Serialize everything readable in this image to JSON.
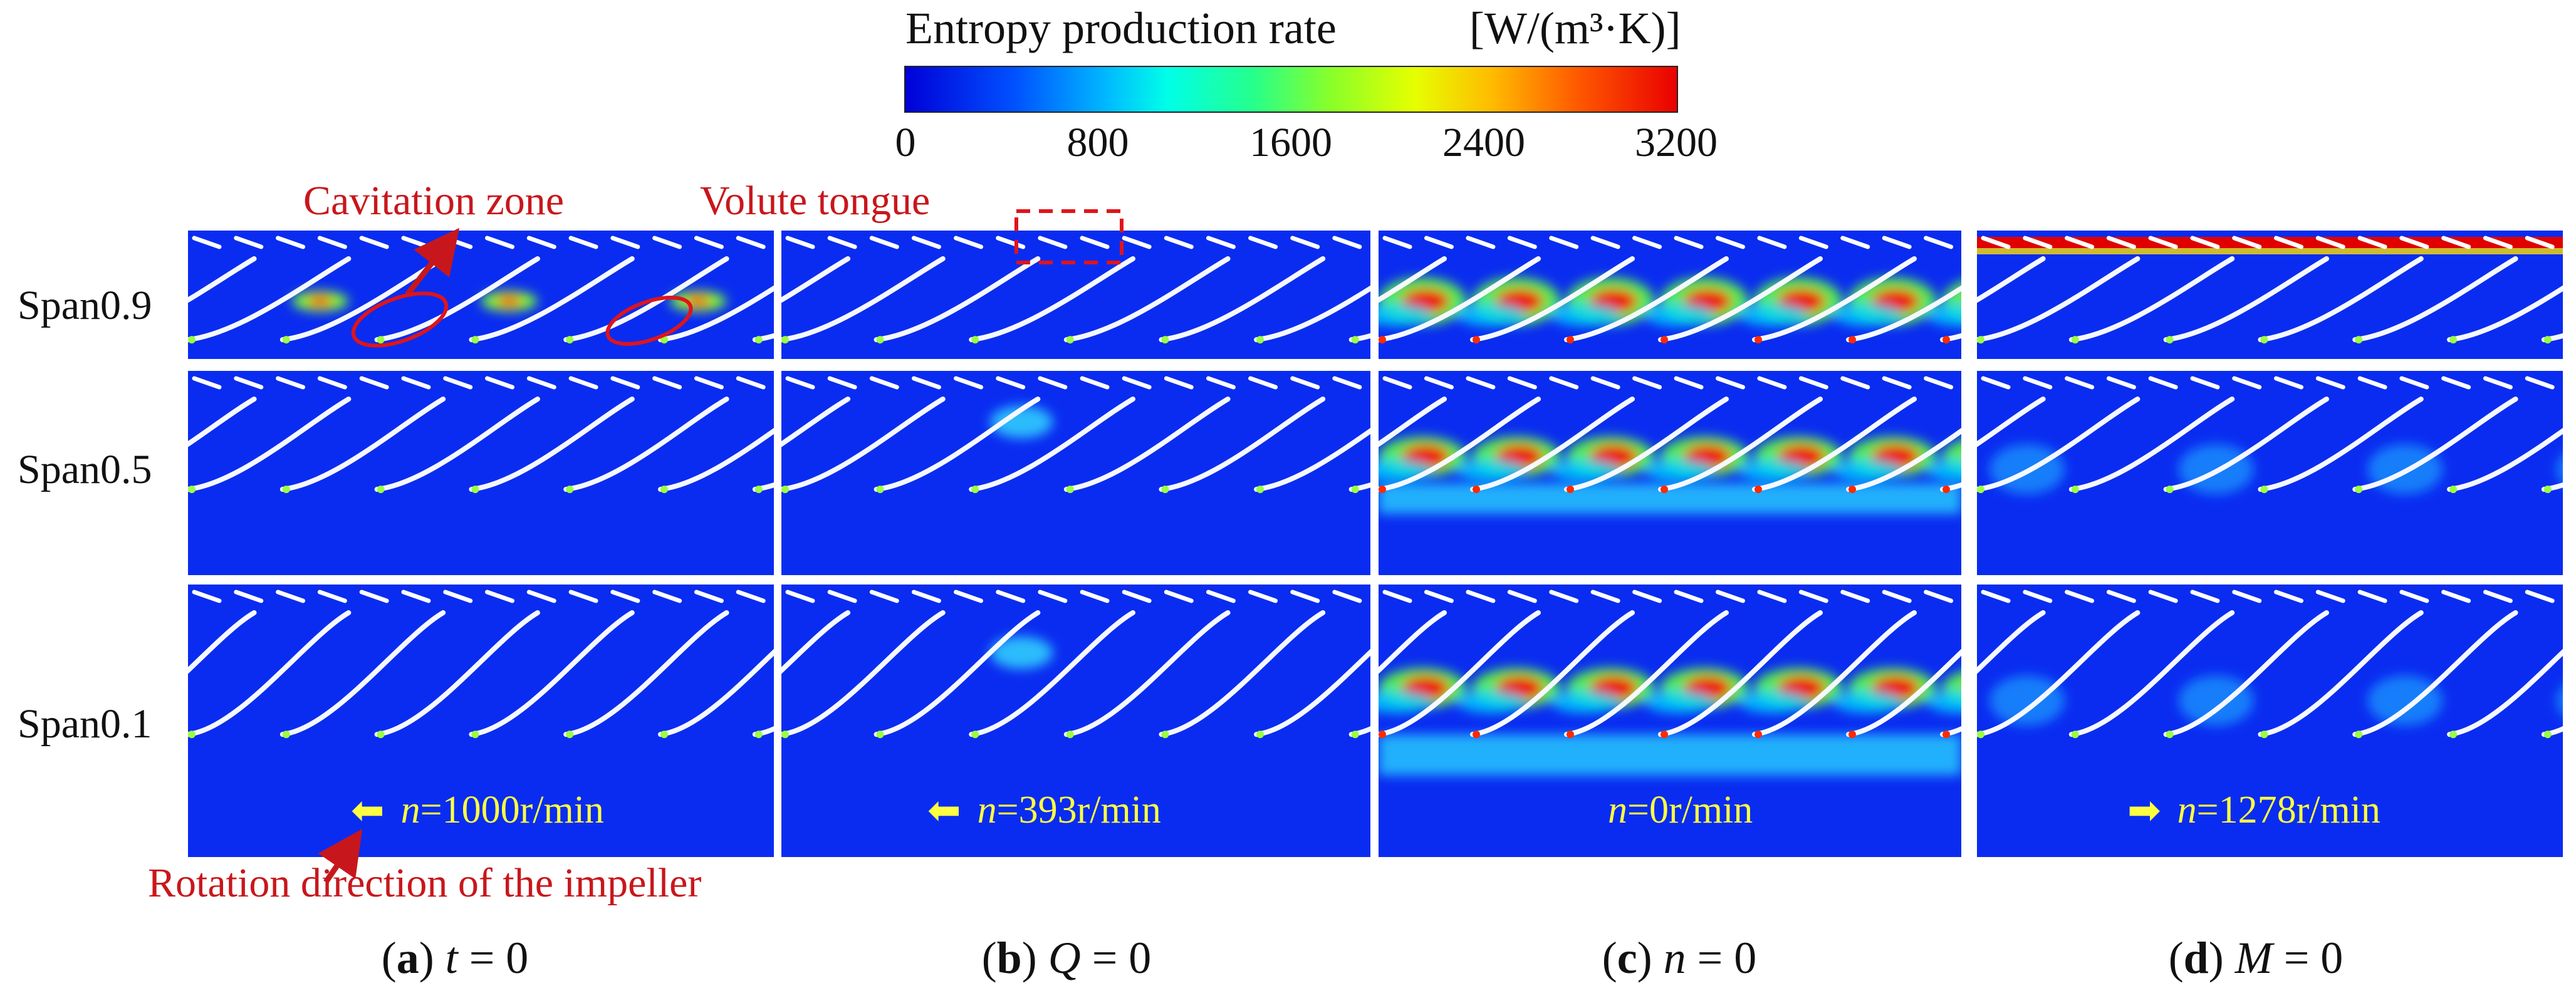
{
  "colorbar": {
    "title": "Entropy production rate",
    "unit": "[W/(m³·K)]",
    "ticks": [
      "0",
      "800",
      "1600",
      "2400",
      "3200"
    ],
    "min": 0,
    "max": 3200
  },
  "rows": [
    "Span0.9",
    "Span0.5",
    "Span0.1"
  ],
  "columns": [
    {
      "letter": "a",
      "caption_var": "t",
      "caption_rest": " = 0",
      "n_var": "n",
      "n_value": "=1000r/min",
      "arrow": "⬅"
    },
    {
      "letter": "b",
      "caption_var": "Q",
      "caption_rest": " = 0",
      "n_var": "n",
      "n_value": "=393r/min",
      "arrow": "⬅"
    },
    {
      "letter": "c",
      "caption_var": "n",
      "caption_rest": " = 0",
      "n_var": "n",
      "n_value": "=0r/min",
      "arrow": ""
    },
    {
      "letter": "d",
      "caption_var": "M",
      "caption_rest": " = 0",
      "n_var": "n",
      "n_value": "=1278r/min",
      "arrow": "➡"
    }
  ],
  "annotations": {
    "cavitation": "Cavitation zone",
    "volute": "Volute tongue",
    "rotation": "Rotation direction of the impeller"
  },
  "colors": {
    "field_bg": "#0a2cf0",
    "annotation": "#c8171c",
    "speed_text": "#ffff40"
  }
}
